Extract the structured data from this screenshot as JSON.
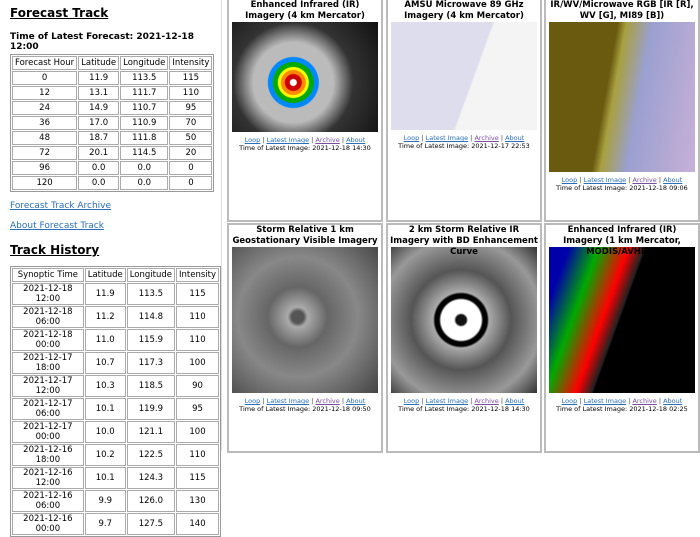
{
  "forecast": {
    "title": "Forecast Track",
    "latest": "Time of Latest Forecast: 2021-12-18 12:00",
    "headers": [
      "Forecast Hour",
      "Latitude",
      "Longitude",
      "Intensity"
    ],
    "rows": [
      [
        "0",
        "11.9",
        "113.5",
        "115"
      ],
      [
        "12",
        "13.1",
        "111.7",
        "110"
      ],
      [
        "24",
        "14.9",
        "110.7",
        "95"
      ],
      [
        "36",
        "17.0",
        "110.9",
        "70"
      ],
      [
        "48",
        "18.7",
        "111.8",
        "50"
      ],
      [
        "72",
        "20.1",
        "114.5",
        "20"
      ],
      [
        "96",
        "0.0",
        "0.0",
        "0"
      ],
      [
        "120",
        "0.0",
        "0.0",
        "0"
      ]
    ],
    "archive_link": "Forecast Track Archive",
    "about_link": "About Forecast Track"
  },
  "history": {
    "title": "Track History",
    "headers": [
      "Synoptic Time",
      "Latitude",
      "Longitude",
      "Intensity"
    ],
    "rows": [
      [
        "2021-12-18 12:00",
        "11.9",
        "113.5",
        "115"
      ],
      [
        "2021-12-18 06:00",
        "11.2",
        "114.8",
        "110"
      ],
      [
        "2021-12-18 00:00",
        "11.0",
        "115.9",
        "110"
      ],
      [
        "2021-12-17 18:00",
        "10.7",
        "117.3",
        "100"
      ],
      [
        "2021-12-17 12:00",
        "10.3",
        "118.5",
        "90"
      ],
      [
        "2021-12-17 06:00",
        "10.1",
        "119.9",
        "95"
      ],
      [
        "2021-12-17 00:00",
        "10.0",
        "121.1",
        "100"
      ],
      [
        "2021-12-16 18:00",
        "10.2",
        "122.5",
        "110"
      ],
      [
        "2021-12-16 12:00",
        "10.1",
        "124.3",
        "115"
      ],
      [
        "2021-12-16 06:00",
        "9.9",
        "126.0",
        "130"
      ],
      [
        "2021-12-16 00:00",
        "9.7",
        "127.5",
        "140"
      ]
    ]
  },
  "links": {
    "loop": "Loop",
    "latest": "Latest Image",
    "archive": "Archive",
    "about": "About",
    "sep": " | "
  },
  "panels": [
    {
      "title": "Enhanced Infrared (IR) Imagery (4 km Mercator)",
      "time": "Time of Latest Image: 2021-12-18 14:30"
    },
    {
      "title": "AMSU Microwave 89 GHz Imagery (4 km Mercator)",
      "time": "Time of Latest Image: 2021-12-17 22:53"
    },
    {
      "title": "IR/WV/Microwave RGB [IR [R], WV [G], MI89 [B])",
      "time": "Time of Latest Image: 2021-12-18 09:06"
    },
    {
      "title": "Storm Relative 1 km Geostationary Visible Imagery",
      "time": "Time of Latest Image: 2021-12-18 09:50"
    },
    {
      "title": "2 km Storm Relative IR Imagery with BD Enhancement Curve",
      "time": "Time of Latest Image: 2021-12-18 14:30"
    },
    {
      "title": "Enhanced Infrared (IR) Imagery (1 km Mercator, MODIS/AVHRR)",
      "time": "Time of Latest Image: 2021-12-18 02:25"
    }
  ]
}
